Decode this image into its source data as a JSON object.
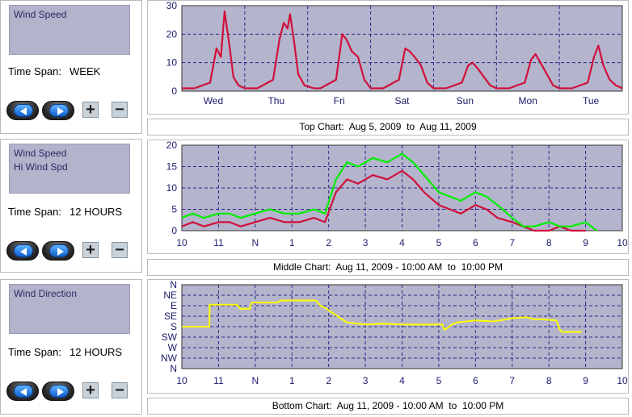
{
  "panels": [
    {
      "legend": [
        "Wind Speed"
      ],
      "time_span_label": "Time Span:",
      "time_span_value": "WEEK",
      "controls": {
        "prev_icon": "left-arrow-icon",
        "next_icon": "right-arrow-icon",
        "zoom_in": "+",
        "zoom_out": "−"
      }
    },
    {
      "legend": [
        "Wind Speed",
        "Hi Wind Spd"
      ],
      "time_span_label": "Time Span:",
      "time_span_value": "12 HOURS",
      "controls": {
        "prev_icon": "left-arrow-icon",
        "next_icon": "right-arrow-icon",
        "zoom_in": "+",
        "zoom_out": "−"
      }
    },
    {
      "legend": [
        "Wind Direction"
      ],
      "time_span_label": "Time Span:",
      "time_span_value": "12 HOURS",
      "controls": {
        "prev_icon": "left-arrow-icon",
        "next_icon": "right-arrow-icon",
        "zoom_in": "+",
        "zoom_out": "−"
      }
    }
  ],
  "captions": {
    "top": "Top Chart:  Aug 5, 2009  to  Aug 11, 2009",
    "middle": "Middle Chart:  Aug 11, 2009 - 10:00 AM  to  10:00 PM",
    "bottom": "Bottom Chart:  Aug 11, 2009 - 10:00 AM  to  10:00 PM"
  },
  "colors": {
    "plot_bg": "#b4b4cc",
    "grid": "#2a2a8a",
    "wind_speed": "#d0103a",
    "hi_wind": "#00ee00",
    "direction": "#ffff00"
  },
  "chart_data": [
    {
      "type": "line",
      "x_ticks": [
        "Wed",
        "Thu",
        "Fri",
        "Sat",
        "Sun",
        "Mon",
        "Tue"
      ],
      "y_ticks": [
        "0",
        "10",
        "20",
        "30"
      ],
      "ylim": [
        0,
        30
      ],
      "xlim": [
        0,
        7
      ],
      "grid": true,
      "series": [
        {
          "color": "#d0103a",
          "x": [
            0,
            0.2,
            0.45,
            0.55,
            0.62,
            0.68,
            0.75,
            0.82,
            0.9,
            1.0,
            1.2,
            1.45,
            1.55,
            1.62,
            1.68,
            1.72,
            1.78,
            1.85,
            1.95,
            2.1,
            2.2,
            2.45,
            2.55,
            2.62,
            2.7,
            2.8,
            2.9,
            3.0,
            3.2,
            3.45,
            3.55,
            3.62,
            3.7,
            3.8,
            3.9,
            4.0,
            4.2,
            4.45,
            4.55,
            4.62,
            4.7,
            4.8,
            4.9,
            5.0,
            5.2,
            5.45,
            5.55,
            5.62,
            5.7,
            5.8,
            5.9,
            6.0,
            6.2,
            6.45,
            6.55,
            6.62,
            6.7,
            6.8,
            6.9,
            7.0
          ],
          "y": [
            1,
            1,
            3,
            15,
            12,
            28,
            17,
            5,
            2,
            1,
            1,
            4,
            18,
            24,
            22,
            27,
            18,
            6,
            2,
            1,
            1,
            4,
            20,
            18,
            14,
            12,
            4,
            1,
            1,
            4,
            15,
            14,
            12,
            9,
            3,
            1,
            1,
            3,
            9,
            10,
            8,
            5,
            2,
            1,
            1,
            3,
            11,
            13,
            10,
            6,
            2,
            1,
            1,
            3,
            12,
            16,
            9,
            4,
            2,
            1
          ]
        }
      ]
    },
    {
      "type": "line",
      "x_ticks": [
        "10",
        "11",
        "N",
        "1",
        "2",
        "3",
        "4",
        "5",
        "6",
        "7",
        "8",
        "9",
        "10"
      ],
      "y_ticks": [
        "0",
        "5",
        "10",
        "15",
        "20"
      ],
      "ylim": [
        0,
        20
      ],
      "xlim": [
        10,
        22
      ],
      "grid": true,
      "series": [
        {
          "name": "Wind Speed",
          "color": "#d0103a",
          "x": [
            10,
            10.3,
            10.6,
            11,
            11.3,
            11.6,
            12,
            12.4,
            12.8,
            13.2,
            13.6,
            13.9,
            14.2,
            14.5,
            14.8,
            15.2,
            15.6,
            16,
            16.3,
            16.6,
            17,
            17.3,
            17.6,
            18,
            18.3,
            18.6,
            19,
            19.3,
            19.6,
            20,
            20.3,
            20.6,
            21
          ],
          "y": [
            1,
            2,
            1,
            2,
            2,
            1,
            2,
            3,
            2,
            2,
            3,
            2,
            9,
            12,
            11,
            13,
            12,
            14,
            12,
            9,
            6,
            5,
            4,
            6,
            5,
            3,
            2,
            1,
            0,
            0,
            1,
            0,
            0
          ]
        },
        {
          "name": "Hi Wind Spd",
          "color": "#00ee00",
          "x": [
            10,
            10.3,
            10.6,
            11,
            11.3,
            11.6,
            12,
            12.4,
            12.8,
            13.2,
            13.6,
            13.9,
            14.2,
            14.5,
            14.8,
            15.2,
            15.6,
            16,
            16.3,
            16.6,
            17,
            17.3,
            17.6,
            18,
            18.3,
            18.6,
            19,
            19.3,
            19.6,
            20,
            20.3,
            20.6,
            21,
            21.3
          ],
          "y": [
            3,
            4,
            3,
            4,
            4,
            3,
            4,
            5,
            4,
            4,
            5,
            4,
            12,
            16,
            15,
            17,
            16,
            18,
            16,
            13,
            9,
            8,
            7,
            9,
            8,
            6,
            3,
            1,
            1,
            2,
            1,
            1,
            2,
            0
          ]
        }
      ]
    },
    {
      "type": "line",
      "x_ticks": [
        "10",
        "11",
        "N",
        "1",
        "2",
        "3",
        "4",
        "5",
        "6",
        "7",
        "8",
        "9",
        "10"
      ],
      "y_ticks": [
        "N",
        "NW",
        "W",
        "SW",
        "S",
        "SE",
        "E",
        "NE",
        "N"
      ],
      "xlim": [
        10,
        22
      ],
      "grid": true,
      "series": [
        {
          "name": "Wind Direction",
          "color": "#ffff00",
          "x": [
            10,
            10.75,
            10.76,
            11.5,
            11.6,
            11.85,
            11.9,
            12.6,
            12.7,
            13.6,
            13.65,
            13.8,
            13.85,
            14.5,
            15,
            15.5,
            16,
            16.5,
            17.1,
            17.15,
            17.25,
            17.35,
            17.5,
            18,
            18.5,
            19,
            19.4,
            19.6,
            19.8,
            20.2,
            20.3,
            20.35,
            20.6,
            20.9
          ],
          "y": [
            4,
            4,
            6.1,
            6.1,
            5.7,
            5.7,
            6.3,
            6.3,
            6.5,
            6.5,
            6.5,
            5.9,
            5.9,
            4.4,
            4.2,
            4.3,
            4.2,
            4.2,
            4.2,
            3.7,
            3.9,
            4.2,
            4.4,
            4.6,
            4.5,
            4.8,
            4.9,
            4.7,
            4.7,
            4.6,
            3.7,
            3.5,
            3.5,
            3.5
          ]
        }
      ]
    }
  ]
}
